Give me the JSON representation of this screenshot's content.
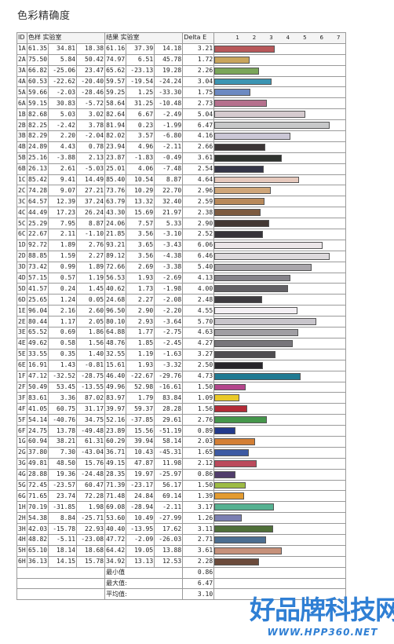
{
  "title": "色彩精确度",
  "watermark": {
    "title": "好品牌科技网",
    "url": "WWW.HPP360.NET"
  },
  "table": {
    "headers": {
      "id": "ID",
      "sample": "色样 实验室",
      "result": "结果 实验室",
      "delta": "Delta E"
    },
    "scale_ticks": [
      "1",
      "2",
      "3",
      "4",
      "5",
      "6",
      "7"
    ],
    "scale_max": 7,
    "rows": [
      {
        "id": "1A",
        "s": [
          "61.35",
          "34.81",
          "18.38"
        ],
        "r": [
          "61.16",
          "37.39",
          "14.18"
        ],
        "de": "3.21",
        "color": "#b8585a"
      },
      {
        "id": "2A",
        "s": [
          "75.50",
          "5.84",
          "50.42"
        ],
        "r": [
          "74.97",
          "6.51",
          "45.78"
        ],
        "de": "1.72",
        "color": "#c9a55c"
      },
      {
        "id": "3A",
        "s": [
          "66.82",
          "-25.06",
          "23.47"
        ],
        "r": [
          "65.62",
          "-23.13",
          "19.28"
        ],
        "de": "2.26",
        "color": "#7aa65a"
      },
      {
        "id": "4A",
        "s": [
          "60.53",
          "-22.62",
          "-20.40"
        ],
        "r": [
          "59.57",
          "-19.54",
          "-24.24"
        ],
        "de": "3.04",
        "color": "#3c95b3"
      },
      {
        "id": "5A",
        "s": [
          "59.66",
          "-2.03",
          "-28.46"
        ],
        "r": [
          "59.25",
          "1.25",
          "-33.30"
        ],
        "de": "1.75",
        "color": "#6d8ac2"
      },
      {
        "id": "6A",
        "s": [
          "59.15",
          "30.83",
          "-5.72"
        ],
        "r": [
          "58.64",
          "31.25",
          "-10.48"
        ],
        "de": "2.73",
        "color": "#b5708d"
      },
      {
        "id": "1B",
        "s": [
          "82.68",
          "5.03",
          "3.02"
        ],
        "r": [
          "82.64",
          "6.67",
          "-2.49"
        ],
        "de": "5.04",
        "color": "#d6cbcf"
      },
      {
        "id": "2B",
        "s": [
          "82.25",
          "-2.42",
          "3.78"
        ],
        "r": [
          "81.94",
          "0.23",
          "-1.99"
        ],
        "de": "6.47",
        "color": "#c7c8c9"
      },
      {
        "id": "3B",
        "s": [
          "82.29",
          "2.20",
          "-2.04"
        ],
        "r": [
          "82.02",
          "3.57",
          "-6.80"
        ],
        "de": "4.16",
        "color": "#cbc7d6"
      },
      {
        "id": "4B",
        "s": [
          "24.89",
          "4.43",
          "0.78"
        ],
        "r": [
          "23.94",
          "4.96",
          "-2.11"
        ],
        "de": "2.66",
        "color": "#3b3536"
      },
      {
        "id": "5B",
        "s": [
          "25.16",
          "-3.88",
          "2.13"
        ],
        "r": [
          "23.87",
          "-1.83",
          "-0.49"
        ],
        "de": "3.61",
        "color": "#2f332f"
      },
      {
        "id": "6B",
        "s": [
          "26.13",
          "2.61",
          "-5.03"
        ],
        "r": [
          "25.01",
          "4.06",
          "-7.48"
        ],
        "de": "2.54",
        "color": "#343547"
      },
      {
        "id": "1C",
        "s": [
          "85.42",
          "9.41",
          "14.49"
        ],
        "r": [
          "85.40",
          "10.54",
          "8.87"
        ],
        "de": "4.64",
        "color": "#e6c9bd"
      },
      {
        "id": "2C",
        "s": [
          "74.28",
          "9.07",
          "27.21"
        ],
        "r": [
          "73.76",
          "10.29",
          "22.70"
        ],
        "de": "2.96",
        "color": "#cfa679"
      },
      {
        "id": "3C",
        "s": [
          "64.57",
          "12.39",
          "37.24"
        ],
        "r": [
          "63.79",
          "13.32",
          "32.40"
        ],
        "de": "2.59",
        "color": "#b8895a"
      },
      {
        "id": "4C",
        "s": [
          "44.49",
          "17.23",
          "26.24"
        ],
        "r": [
          "43.30",
          "15.69",
          "21.97"
        ],
        "de": "2.38",
        "color": "#7d5b40"
      },
      {
        "id": "5C",
        "s": [
          "25.29",
          "7.95",
          "8.87"
        ],
        "r": [
          "24.06",
          "7.57",
          "5.33"
        ],
        "de": "2.90",
        "color": "#433833"
      },
      {
        "id": "6C",
        "s": [
          "22.67",
          "2.11",
          "-1.10"
        ],
        "r": [
          "21.85",
          "3.56",
          "-3.10"
        ],
        "de": "2.52",
        "color": "#363339"
      },
      {
        "id": "1D",
        "s": [
          "92.72",
          "1.89",
          "2.76"
        ],
        "r": [
          "93.21",
          "3.65",
          "-3.43"
        ],
        "de": "6.06",
        "color": "#ebe6e8"
      },
      {
        "id": "2D",
        "s": [
          "88.85",
          "1.59",
          "2.27"
        ],
        "r": [
          "89.12",
          "3.56",
          "-4.38"
        ],
        "de": "6.46",
        "color": "#ddd9dc"
      },
      {
        "id": "3D",
        "s": [
          "73.42",
          "0.99",
          "1.89"
        ],
        "r": [
          "72.66",
          "2.69",
          "-3.38"
        ],
        "de": "5.40",
        "color": "#a9a6ab"
      },
      {
        "id": "4D",
        "s": [
          "57.15",
          "0.57",
          "1.19"
        ],
        "r": [
          "56.53",
          "1.93",
          "-2.69"
        ],
        "de": "4.13",
        "color": "#85838a"
      },
      {
        "id": "5D",
        "s": [
          "41.57",
          "0.24",
          "1.45"
        ],
        "r": [
          "40.62",
          "1.73",
          "-1.98"
        ],
        "de": "4.00",
        "color": "#626065"
      },
      {
        "id": "6D",
        "s": [
          "25.65",
          "1.24",
          "0.05"
        ],
        "r": [
          "24.68",
          "2.27",
          "-2.08"
        ],
        "de": "2.48",
        "color": "#3d3b3f"
      },
      {
        "id": "1E",
        "s": [
          "96.04",
          "2.16",
          "2.60"
        ],
        "r": [
          "96.50",
          "2.90",
          "-2.20"
        ],
        "de": "4.55",
        "color": "#f4f0f4"
      },
      {
        "id": "2E",
        "s": [
          "80.44",
          "1.17",
          "2.05"
        ],
        "r": [
          "80.10",
          "2.93",
          "-3.64"
        ],
        "de": "5.70",
        "color": "#c8c5cb"
      },
      {
        "id": "3E",
        "s": [
          "65.52",
          "0.69",
          "1.86"
        ],
        "r": [
          "64.88",
          "1.77",
          "-2.75"
        ],
        "de": "4.63",
        "color": "#a09ea3"
      },
      {
        "id": "4E",
        "s": [
          "49.62",
          "0.58",
          "1.56"
        ],
        "r": [
          "48.76",
          "1.85",
          "-2.45"
        ],
        "de": "4.27",
        "color": "#77757a"
      },
      {
        "id": "5E",
        "s": [
          "33.55",
          "0.35",
          "1.40"
        ],
        "r": [
          "32.55",
          "1.19",
          "-1.63"
        ],
        "de": "3.27",
        "color": "#4f4d51"
      },
      {
        "id": "6E",
        "s": [
          "16.91",
          "1.43",
          "-0.81"
        ],
        "r": [
          "15.61",
          "1.93",
          "-3.32"
        ],
        "de": "2.50",
        "color": "#28262b"
      },
      {
        "id": "1F",
        "s": [
          "47.12",
          "-32.52",
          "-28.75"
        ],
        "r": [
          "46.40",
          "-22.67",
          "-29.76"
        ],
        "de": "4.73",
        "color": "#1f7a93"
      },
      {
        "id": "2F",
        "s": [
          "50.49",
          "53.45",
          "-13.55"
        ],
        "r": [
          "49.96",
          "52.98",
          "-16.61"
        ],
        "de": "1.50",
        "color": "#b4468c"
      },
      {
        "id": "3F",
        "s": [
          "83.61",
          "3.36",
          "87.02"
        ],
        "r": [
          "83.97",
          "1.79",
          "83.84"
        ],
        "de": "1.09",
        "color": "#e9c928"
      },
      {
        "id": "4F",
        "s": [
          "41.05",
          "60.75",
          "31.17"
        ],
        "r": [
          "39.97",
          "59.37",
          "28.28"
        ],
        "de": "1.56",
        "color": "#b32b37"
      },
      {
        "id": "5F",
        "s": [
          "54.14",
          "-40.76",
          "34.75"
        ],
        "r": [
          "52.16",
          "-37.85",
          "29.61"
        ],
        "de": "2.76",
        "color": "#45964b"
      },
      {
        "id": "6F",
        "s": [
          "24.75",
          "13.78",
          "-49.48"
        ],
        "r": [
          "23.89",
          "15.56",
          "-51.19"
        ],
        "de": "0.89",
        "color": "#223a8c"
      },
      {
        "id": "1G",
        "s": [
          "60.94",
          "38.21",
          "61.31"
        ],
        "r": [
          "60.29",
          "39.94",
          "58.14"
        ],
        "de": "2.03",
        "color": "#d37f35"
      },
      {
        "id": "2G",
        "s": [
          "37.80",
          "7.30",
          "-43.04"
        ],
        "r": [
          "36.71",
          "10.43",
          "-45.31"
        ],
        "de": "1.65",
        "color": "#3d5aa3"
      },
      {
        "id": "3G",
        "s": [
          "49.81",
          "48.50",
          "15.76"
        ],
        "r": [
          "49.15",
          "47.87",
          "11.98"
        ],
        "de": "2.12",
        "color": "#bb4a5c"
      },
      {
        "id": "4G",
        "s": [
          "28.88",
          "19.36",
          "-24.48"
        ],
        "r": [
          "28.35",
          "19.97",
          "-25.97"
        ],
        "de": "0.86",
        "color": "#513d6c"
      },
      {
        "id": "5G",
        "s": [
          "72.45",
          "-23.57",
          "60.47"
        ],
        "r": [
          "71.39",
          "-23.17",
          "56.17"
        ],
        "de": "1.50",
        "color": "#9dbb44"
      },
      {
        "id": "6G",
        "s": [
          "71.65",
          "23.74",
          "72.28"
        ],
        "r": [
          "71.48",
          "24.84",
          "69.14"
        ],
        "de": "1.39",
        "color": "#e39b30"
      },
      {
        "id": "1H",
        "s": [
          "70.19",
          "-31.85",
          "1.98"
        ],
        "r": [
          "69.08",
          "-28.94",
          "-2.11"
        ],
        "de": "3.17",
        "color": "#56b191"
      },
      {
        "id": "2H",
        "s": [
          "54.38",
          "8.84",
          "-25.71"
        ],
        "r": [
          "53.60",
          "10.49",
          "-27.99"
        ],
        "de": "1.26",
        "color": "#7b7fb2"
      },
      {
        "id": "3H",
        "s": [
          "42.03",
          "-15.78",
          "22.93"
        ],
        "r": [
          "40.40",
          "-13.95",
          "17.62"
        ],
        "de": "3.11",
        "color": "#4f6f39"
      },
      {
        "id": "4H",
        "s": [
          "48.82",
          "-5.11",
          "-23.08"
        ],
        "r": [
          "47.72",
          "-2.09",
          "-26.03"
        ],
        "de": "2.71",
        "color": "#4b6e91"
      },
      {
        "id": "5H",
        "s": [
          "65.10",
          "18.14",
          "18.68"
        ],
        "r": [
          "64.42",
          "19.05",
          "13.88"
        ],
        "de": "3.61",
        "color": "#c6917a"
      },
      {
        "id": "6H",
        "s": [
          "36.13",
          "14.15",
          "15.78"
        ],
        "r": [
          "34.92",
          "13.13",
          "12.53"
        ],
        "de": "2.28",
        "color": "#6b4a3b"
      }
    ],
    "summary": [
      {
        "label": "最小值",
        "value": "0.86"
      },
      {
        "label": "最大值:",
        "value": "6.47"
      },
      {
        "label": "平均值:",
        "value": "3.10"
      }
    ]
  }
}
